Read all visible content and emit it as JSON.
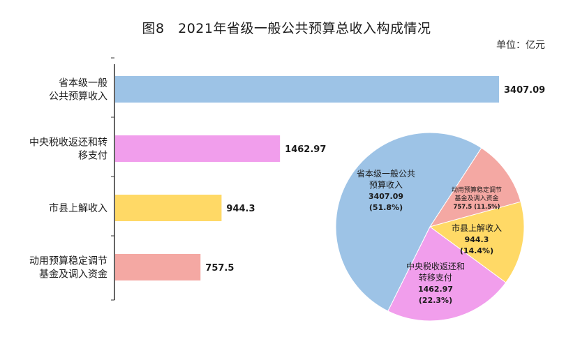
{
  "title": "图8　2021年省级一般公共预算总收入构成情况",
  "unit_label": "单位：亿元",
  "colors": {
    "blue": "#9DC3E6",
    "pink": "#F19EEC",
    "yellow": "#FFD966",
    "salmon": "#F4A8A3"
  },
  "chart_data": [
    {
      "type": "bar",
      "orientation": "horizontal",
      "categories": [
        [
          "省本级一般",
          "公共预算收入"
        ],
        [
          "中央税收返还和转",
          "移支付"
        ],
        [
          "市县上解收入"
        ],
        [
          "动用预算稳定调节",
          "基金及调入资金"
        ]
      ],
      "values": [
        3407.09,
        1462.97,
        944.3,
        757.5
      ],
      "value_labels": [
        "3407.09",
        "1462.97",
        "944.3",
        "757.5"
      ],
      "colors": [
        "#9DC3E6",
        "#F19EEC",
        "#FFD966",
        "#F4A8A3"
      ],
      "xlim": [
        0,
        3600
      ]
    },
    {
      "type": "pie",
      "slices": [
        {
          "lines": [
            "省本级一般公共",
            "预算收入"
          ],
          "value": 3407.09,
          "value_label": "3407.09",
          "percent": 51.8,
          "percent_label": "(51.8%)",
          "color": "#9DC3E6"
        },
        {
          "lines": [
            "动用预算稳定调节",
            "基金及调入资金"
          ],
          "value": 757.5,
          "value_label": "757.5",
          "percent": 11.5,
          "percent_label": "(11.5%)",
          "color": "#F4A8A3"
        },
        {
          "lines": [
            "市县上解收入"
          ],
          "value": 944.3,
          "value_label": "944.3",
          "percent": 14.4,
          "percent_label": "(14.4%)",
          "color": "#FFD966"
        },
        {
          "lines": [
            "中央税收返还和",
            "转移支付"
          ],
          "value": 1462.97,
          "value_label": "1462.97",
          "percent": 22.3,
          "percent_label": "(22.3%)",
          "color": "#F19EEC"
        }
      ]
    }
  ]
}
